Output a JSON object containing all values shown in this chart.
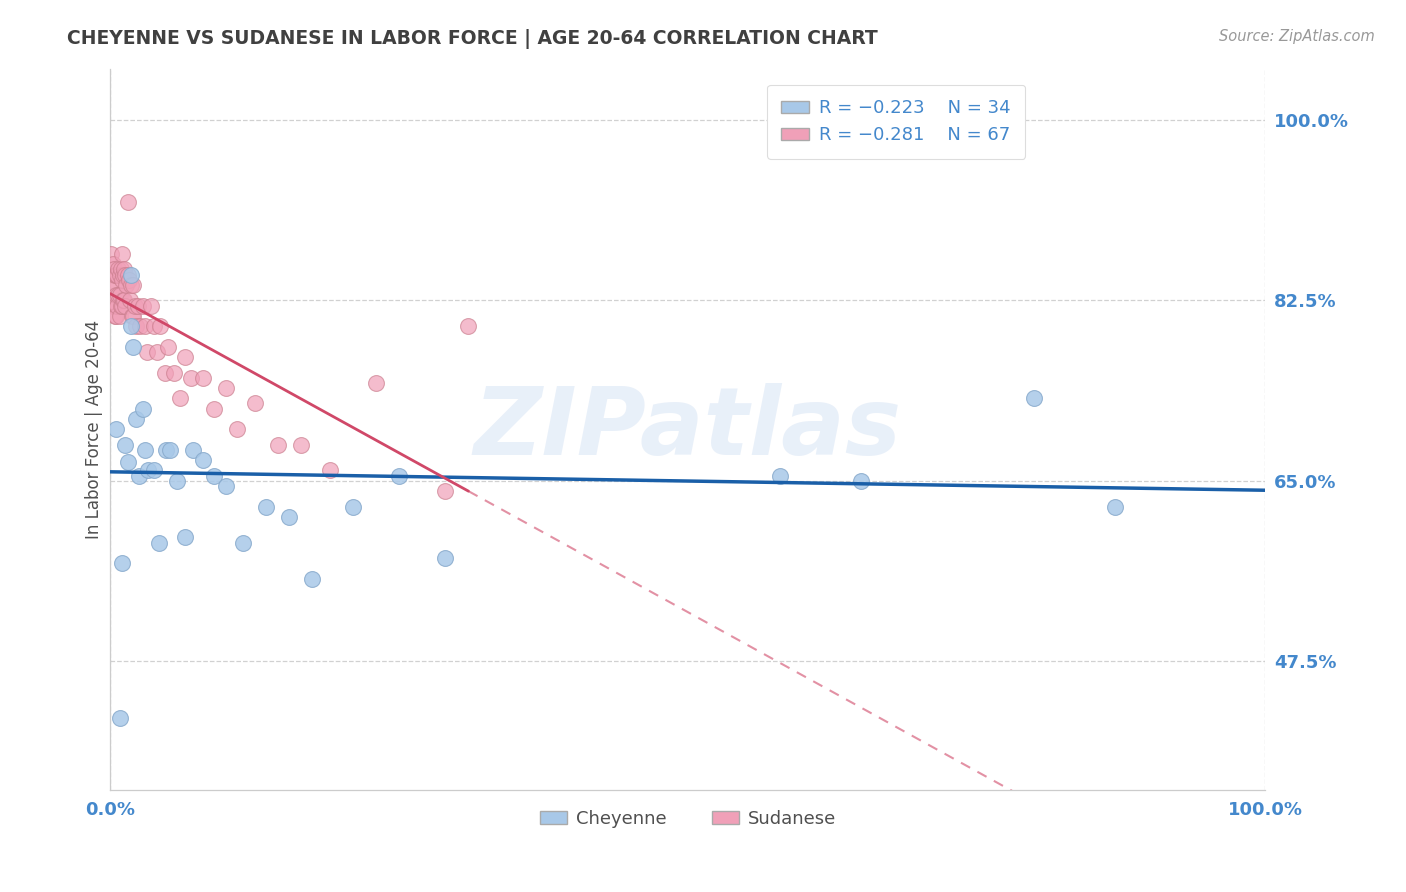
{
  "title": "CHEYENNE VS SUDANESE IN LABOR FORCE | AGE 20-64 CORRELATION CHART",
  "source": "Source: ZipAtlas.com",
  "ylabel": "In Labor Force | Age 20-64",
  "watermark": "ZIPatlas",
  "xlim": [
    0.0,
    1.0
  ],
  "ylim": [
    0.35,
    1.05
  ],
  "yticks": [
    0.475,
    0.65,
    0.825,
    1.0
  ],
  "ytick_labels": [
    "47.5%",
    "65.0%",
    "82.5%",
    "100.0%"
  ],
  "xtick_labels": [
    "0.0%",
    "100.0%"
  ],
  "legend_cheyenne_r": "R = −0.223",
  "legend_cheyenne_n": "N = 34",
  "legend_sudanese_r": "R = −0.281",
  "legend_sudanese_n": "N = 67",
  "cheyenne_color": "#a8c8e8",
  "cheyenne_edge_color": "#88aacc",
  "sudanese_color": "#f0a0b8",
  "sudanese_edge_color": "#cc8090",
  "cheyenne_line_color": "#1a5fa8",
  "sudanese_line_color": "#d04868",
  "bg_color": "#ffffff",
  "grid_color": "#cccccc",
  "title_color": "#404040",
  "ylabel_color": "#505050",
  "tick_color": "#4488cc",
  "source_color": "#999999",
  "cheyenne_x": [
    0.005,
    0.008,
    0.01,
    0.013,
    0.015,
    0.018,
    0.018,
    0.02,
    0.022,
    0.025,
    0.028,
    0.03,
    0.033,
    0.038,
    0.042,
    0.048,
    0.052,
    0.058,
    0.065,
    0.072,
    0.08,
    0.09,
    0.1,
    0.115,
    0.135,
    0.155,
    0.175,
    0.21,
    0.25,
    0.29,
    0.58,
    0.65,
    0.8,
    0.87
  ],
  "cheyenne_y": [
    0.7,
    0.42,
    0.57,
    0.685,
    0.668,
    0.85,
    0.8,
    0.78,
    0.71,
    0.655,
    0.72,
    0.68,
    0.66,
    0.66,
    0.59,
    0.68,
    0.68,
    0.65,
    0.595,
    0.68,
    0.67,
    0.655,
    0.645,
    0.59,
    0.625,
    0.615,
    0.555,
    0.625,
    0.655,
    0.575,
    0.655,
    0.65,
    0.73,
    0.625
  ],
  "sudanese_x": [
    0.001,
    0.001,
    0.002,
    0.002,
    0.003,
    0.003,
    0.003,
    0.004,
    0.004,
    0.005,
    0.005,
    0.005,
    0.006,
    0.006,
    0.007,
    0.007,
    0.008,
    0.008,
    0.008,
    0.009,
    0.009,
    0.01,
    0.01,
    0.01,
    0.011,
    0.011,
    0.012,
    0.012,
    0.013,
    0.013,
    0.014,
    0.015,
    0.015,
    0.016,
    0.017,
    0.018,
    0.019,
    0.02,
    0.02,
    0.021,
    0.022,
    0.024,
    0.026,
    0.028,
    0.03,
    0.032,
    0.035,
    0.038,
    0.04,
    0.043,
    0.047,
    0.05,
    0.055,
    0.06,
    0.065,
    0.07,
    0.08,
    0.09,
    0.1,
    0.11,
    0.125,
    0.145,
    0.165,
    0.19,
    0.23,
    0.29,
    0.31
  ],
  "sudanese_y": [
    0.87,
    0.835,
    0.86,
    0.82,
    0.855,
    0.84,
    0.82,
    0.85,
    0.81,
    0.85,
    0.83,
    0.81,
    0.85,
    0.82,
    0.855,
    0.83,
    0.85,
    0.83,
    0.81,
    0.855,
    0.82,
    0.87,
    0.845,
    0.82,
    0.85,
    0.825,
    0.855,
    0.825,
    0.85,
    0.82,
    0.84,
    0.92,
    0.85,
    0.845,
    0.825,
    0.84,
    0.81,
    0.84,
    0.81,
    0.82,
    0.8,
    0.82,
    0.8,
    0.82,
    0.8,
    0.775,
    0.82,
    0.8,
    0.775,
    0.8,
    0.755,
    0.78,
    0.755,
    0.73,
    0.77,
    0.75,
    0.75,
    0.72,
    0.74,
    0.7,
    0.725,
    0.685,
    0.685,
    0.66,
    0.745,
    0.64,
    0.8
  ]
}
